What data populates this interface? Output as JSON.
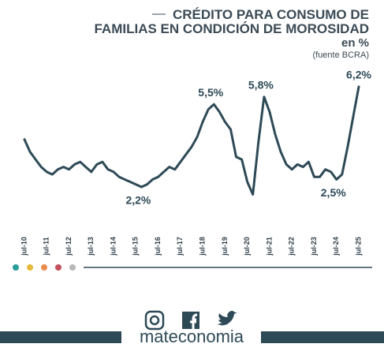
{
  "chart_data": {
    "type": "line",
    "title": [
      "CRÉDITO PARA CONSUMO DE",
      "FAMILIAS EN CONDICIÓN DE MOROSIDAD"
    ],
    "subtitle": "en %",
    "source": "(fuente BCRA)",
    "brand": "mateconomia",
    "categories": [
      "jul-10",
      null,
      null,
      null,
      "jul-11",
      null,
      null,
      null,
      "jul-12",
      null,
      null,
      null,
      "jul-13",
      null,
      null,
      null,
      "jul-14",
      null,
      null,
      null,
      "jul-15",
      null,
      null,
      null,
      "jul-16",
      null,
      null,
      null,
      "jul-17",
      null,
      null,
      null,
      "jul-18",
      null,
      null,
      null,
      "jul-19",
      null,
      null,
      null,
      "jul-20",
      null,
      null,
      null,
      "jul-21",
      null,
      null,
      null,
      "jul-22",
      null,
      null,
      null,
      "jul-23",
      null,
      null,
      null,
      "jul-24",
      null,
      null,
      null,
      "jul-25"
    ],
    "series": [
      {
        "name": "Morosidad",
        "color": "#2e4a57",
        "values": [
          4.1,
          3.6,
          3.3,
          3.0,
          2.8,
          2.7,
          2.9,
          3.0,
          2.9,
          3.1,
          3.2,
          3.0,
          2.8,
          3.1,
          3.2,
          2.9,
          2.8,
          2.6,
          2.5,
          2.4,
          2.3,
          2.2,
          2.3,
          2.5,
          2.6,
          2.8,
          3.0,
          2.9,
          3.2,
          3.5,
          3.8,
          4.2,
          4.8,
          5.3,
          5.5,
          5.2,
          4.8,
          4.5,
          3.4,
          3.3,
          2.4,
          1.9,
          4.0,
          5.8,
          5.2,
          4.3,
          3.6,
          3.1,
          2.9,
          3.1,
          3.0,
          3.2,
          2.6,
          2.6,
          2.9,
          2.8,
          2.5,
          2.7,
          3.8,
          5.0,
          6.2
        ],
        "value_labels": [
          null,
          null,
          null,
          null,
          null,
          null,
          null,
          null,
          null,
          null,
          null,
          null,
          null,
          null,
          null,
          null,
          null,
          null,
          null,
          null,
          null,
          "2,2%",
          null,
          null,
          null,
          null,
          null,
          null,
          null,
          null,
          null,
          null,
          null,
          null,
          "5,5%",
          null,
          null,
          null,
          null,
          null,
          null,
          null,
          null,
          "5,8%",
          null,
          null,
          null,
          null,
          null,
          null,
          null,
          null,
          null,
          null,
          null,
          null,
          "2,5%",
          null,
          null,
          null,
          "6,2%"
        ]
      }
    ],
    "ylim": [
      1.5,
      6.5
    ]
  }
}
